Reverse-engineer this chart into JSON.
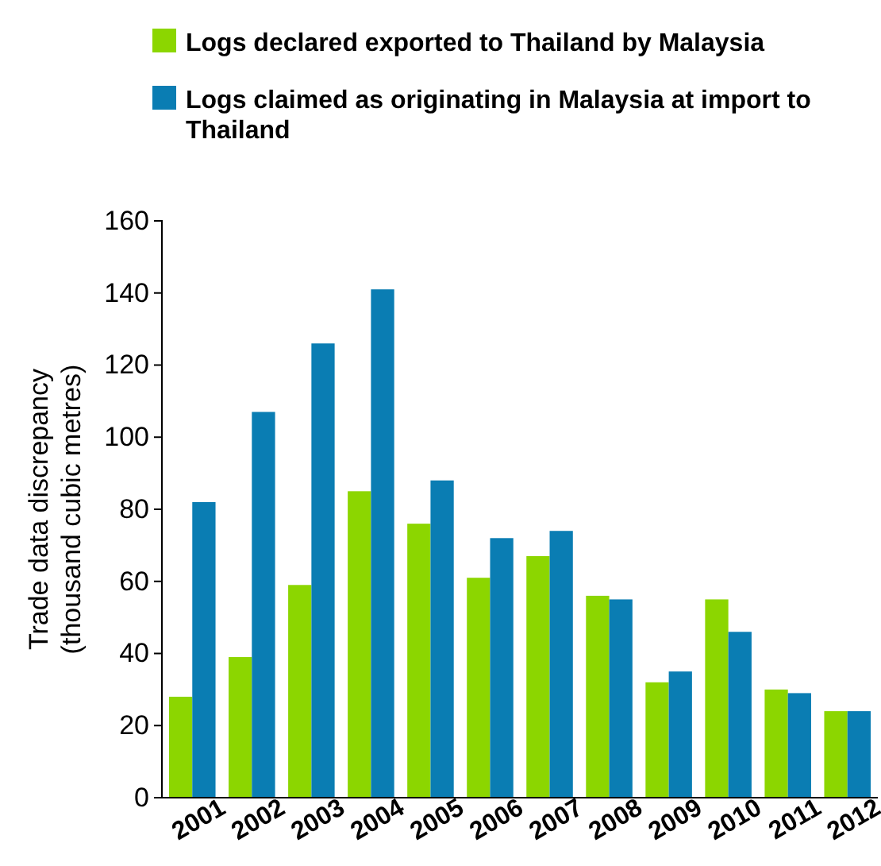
{
  "chart_data": {
    "type": "bar",
    "ylabel": "Trade data discrepancy\n(thousand cubic metres)",
    "categories": [
      "2001",
      "2002",
      "2003",
      "2004",
      "2005",
      "2006",
      "2007",
      "2008",
      "2009",
      "2010",
      "2011",
      "2012"
    ],
    "series": [
      {
        "name": "Logs declared exported to Thailand by Malaysia",
        "color": "#8cd600",
        "values": [
          28,
          39,
          59,
          85,
          76,
          61,
          67,
          56,
          32,
          55,
          30,
          24
        ]
      },
      {
        "name": "Logs claimed as originating in Malaysia at import to Thailand",
        "color": "#0a7db3",
        "values": [
          82,
          107,
          126,
          141,
          88,
          72,
          74,
          55,
          35,
          46,
          29,
          24
        ]
      }
    ],
    "ylim": [
      0,
      160
    ],
    "yticks": [
      0,
      20,
      40,
      60,
      80,
      100,
      120,
      140,
      160
    ],
    "grid": false,
    "legend": "top"
  }
}
